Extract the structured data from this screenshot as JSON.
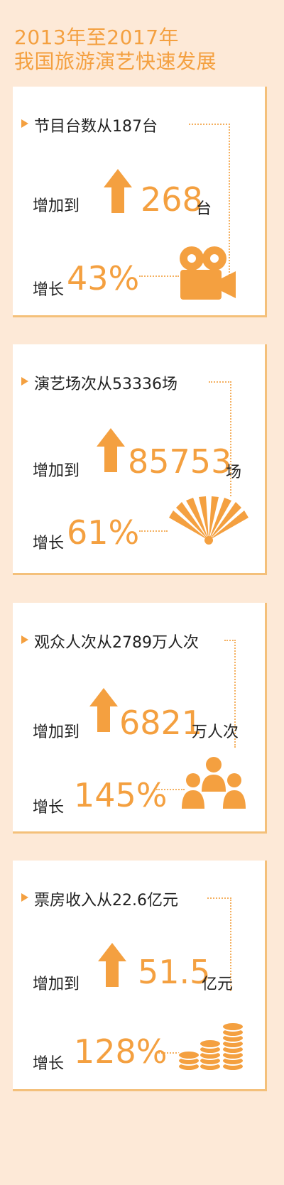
{
  "header": {
    "title_line1": "2013年至2017年",
    "title_line2": "我国旅游演艺快速发展"
  },
  "cards": [
    {
      "from_text": "节目台数从187台",
      "increase_label": "增加到",
      "to_value": "268",
      "to_unit": "台",
      "growth_label": "增长",
      "growth_value": "43%",
      "icon": "film-camera-icon"
    },
    {
      "from_text": "演艺场次从53336场",
      "increase_label": "增加到",
      "to_value": "85753",
      "to_unit": "场",
      "growth_label": "增长",
      "growth_value": "61%",
      "icon": "folding-fan-icon"
    },
    {
      "from_text": "观众人次从2789万人次",
      "increase_label": "增加到",
      "to_value": "6821",
      "to_unit": "万人次",
      "growth_label": "增长",
      "growth_value": "145%",
      "icon": "audience-people-icon"
    },
    {
      "from_text": "票房收入从22.6亿元",
      "increase_label": "增加到",
      "to_value": "51.5",
      "to_unit": "亿元",
      "growth_label": "增长",
      "growth_value": "128%",
      "icon": "coin-stacks-icon"
    }
  ],
  "colors": {
    "background": "#fde9d7",
    "accent": "#f4a040",
    "text": "#222222"
  }
}
